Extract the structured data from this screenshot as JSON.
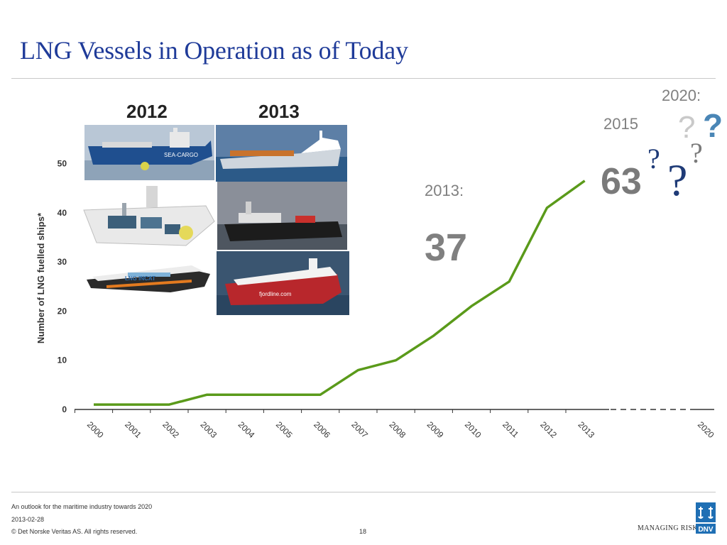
{
  "title": "LNG Vessels in Operation as of Today",
  "annotations": {
    "y2020": "2020:",
    "y2015": "2015",
    "y2013": "2013:",
    "v37": "37",
    "v63": "63",
    "question_mark": "?"
  },
  "gallery": {
    "year_2012": "2012",
    "year_2013": "2013",
    "labels": {
      "seacargo": "SEA-CARGO",
      "lng_incat": "LNG INCAT",
      "fjordline": "fjordline.com"
    }
  },
  "chart_data": {
    "type": "line",
    "ylabel": "Number of LNG fuelled ships*",
    "xlabel": "",
    "ylim": [
      0,
      50
    ],
    "yticks": [
      0,
      10,
      20,
      30,
      40,
      50
    ],
    "x_labels": [
      "2000",
      "2001",
      "2002",
      "2003",
      "2004",
      "2005",
      "2006",
      "2007",
      "2008",
      "2009",
      "2010",
      "2011",
      "2012",
      "2013",
      "2020"
    ],
    "series": [
      {
        "x": [
          "2000",
          "2001",
          "2002",
          "2003",
          "2004",
          "2005",
          "2006",
          "2007",
          "2008",
          "2009",
          "2010",
          "2011",
          "2012",
          "2013"
        ],
        "values": [
          1,
          1,
          1,
          3,
          3,
          3,
          3,
          8,
          10,
          15,
          21,
          26,
          41,
          46.5
        ],
        "color": "#5a9a1a"
      }
    ],
    "projection": {
      "x": [
        "2013",
        "2020"
      ],
      "style": "dashed",
      "color": "#666666"
    }
  },
  "footer": {
    "line1": "An outlook for the maritime industry towards 2020",
    "line2": "2013-02-28",
    "line3": "© Det Norske Veritas AS. All rights reserved.",
    "page": "18",
    "managing_risk": "MANAGING RISK",
    "logo_text": "DNV"
  },
  "colors": {
    "title": "#1f3b99",
    "series": "#5a9a1a",
    "annotation": "#808080",
    "logo": "#1f6fb4"
  }
}
